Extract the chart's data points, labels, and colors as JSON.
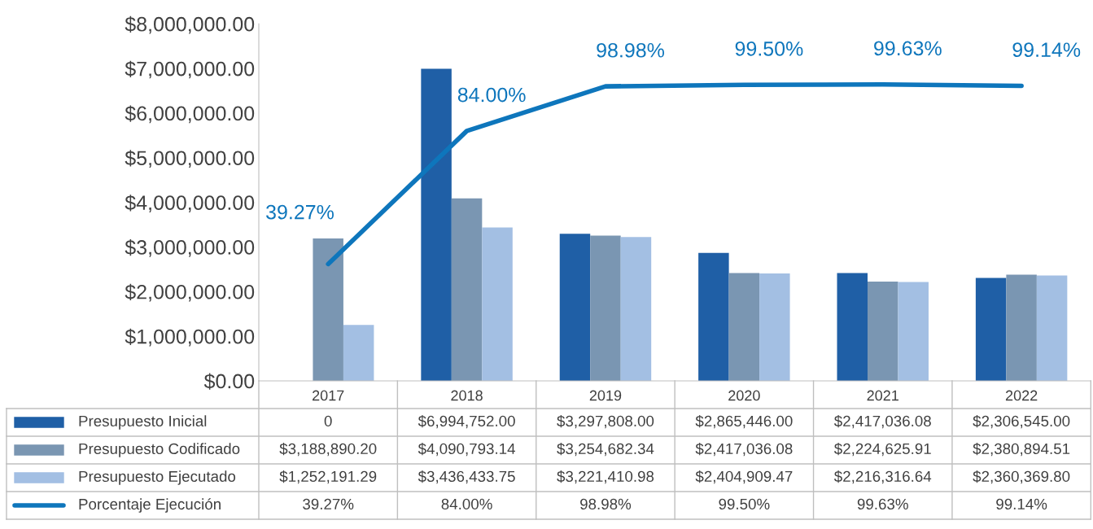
{
  "chart_data": {
    "type": "bar",
    "categories": [
      "2017",
      "2018",
      "2019",
      "2020",
      "2021",
      "2022"
    ],
    "series": [
      {
        "name": "Presupuesto Inicial",
        "color": "#1f5fa6",
        "values": [
          0,
          6994752.0,
          3297808.0,
          2865446.0,
          2417036.08,
          2306545.0
        ],
        "value_labels": [
          "0",
          "$6,994,752.00",
          "$3,297,808.00",
          "$2,865,446.00",
          "$2,417,036.08",
          "$2,306,545.00"
        ]
      },
      {
        "name": "Presupuesto Codificado",
        "color": "#7a96b2",
        "values": [
          3188890.2,
          4090793.14,
          3254682.34,
          2417036.08,
          2224625.91,
          2380894.51
        ],
        "value_labels": [
          "$3,188,890.20",
          "$4,090,793.14",
          "$3,254,682.34",
          "$2,417,036.08",
          "$2,224,625.91",
          "$2,380,894.51"
        ]
      },
      {
        "name": "Presupuesto Ejecutado",
        "color": "#a3bfe3",
        "values": [
          1252191.29,
          3436433.75,
          3221410.98,
          2404909.47,
          2216316.64,
          2360369.8
        ],
        "value_labels": [
          "$1,252,191.29",
          "$3,436,433.75",
          "$3,221,410.98",
          "$2,404,909.47",
          "$2,216,316.64",
          "$2,360,369.80"
        ]
      },
      {
        "name": "Porcentaje Ejecución",
        "type": "line",
        "axis": "y2",
        "color": "#0e76bc",
        "values": [
          39.27,
          84.0,
          98.98,
          99.5,
          99.63,
          99.14
        ],
        "value_labels": [
          "39.27%",
          "84.00%",
          "98.98%",
          "99.50%",
          "99.63%",
          "99.14%"
        ]
      }
    ],
    "ylim": [
      0,
      8000000
    ],
    "yticks": [
      {
        "value": 0,
        "label": "$0.00"
      },
      {
        "value": 1000000,
        "label": "$1,000,000.00"
      },
      {
        "value": 2000000,
        "label": "$2,000,000.00"
      },
      {
        "value": 3000000,
        "label": "$3,000,000.00"
      },
      {
        "value": 4000000,
        "label": "$4,000,000.00"
      },
      {
        "value": 5000000,
        "label": "$5,000,000.00"
      },
      {
        "value": 6000000,
        "label": "$6,000,000.00"
      },
      {
        "value": 7000000,
        "label": "$7,000,000.00"
      },
      {
        "value": 8000000,
        "label": "$8,000,000.00"
      }
    ],
    "y2lim": [
      0,
      120
    ],
    "tick_labels": "xy",
    "grid": false,
    "legend": "bottom",
    "data_labels": true
  }
}
